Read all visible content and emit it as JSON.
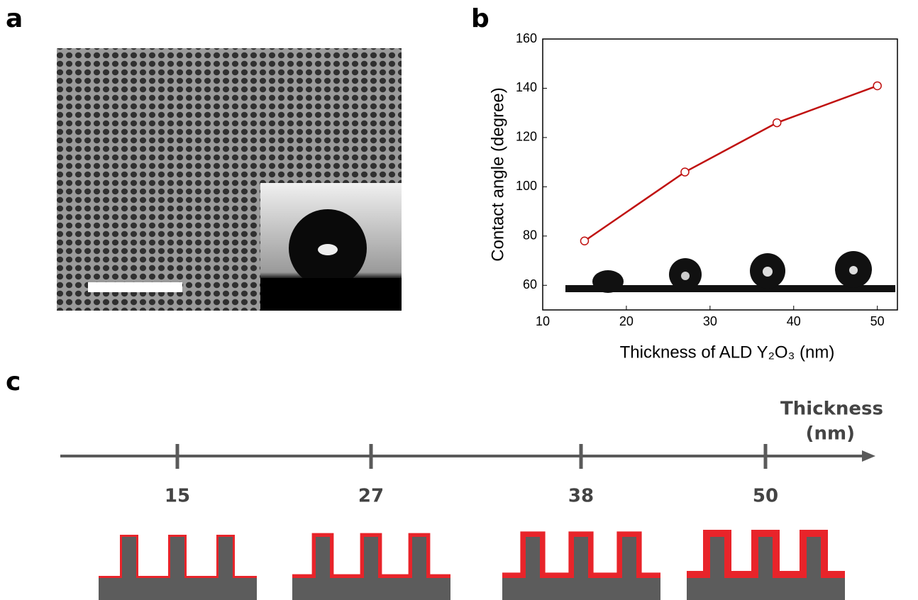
{
  "panels": {
    "a": "a",
    "b": "b",
    "c": "c"
  },
  "chart_data": {
    "type": "line",
    "xlabel": "Thickness of ALD Y₂O₃ (nm)",
    "ylabel": "Contact angle (degree)",
    "x": [
      15,
      27,
      38,
      50
    ],
    "series": [
      {
        "color": "#c0100f",
        "values": [
          78,
          106,
          126,
          141
        ]
      }
    ],
    "xlim": [
      10,
      52.4
    ],
    "ylim": [
      50,
      160
    ],
    "xticks": [
      10,
      20,
      30,
      40,
      50
    ],
    "yticks": [
      60,
      80,
      100,
      120,
      140,
      160
    ]
  },
  "diagram": {
    "axis_label_lines": [
      "Thickness",
      "(nm)"
    ],
    "ticks": [
      15,
      27,
      38,
      50
    ]
  }
}
